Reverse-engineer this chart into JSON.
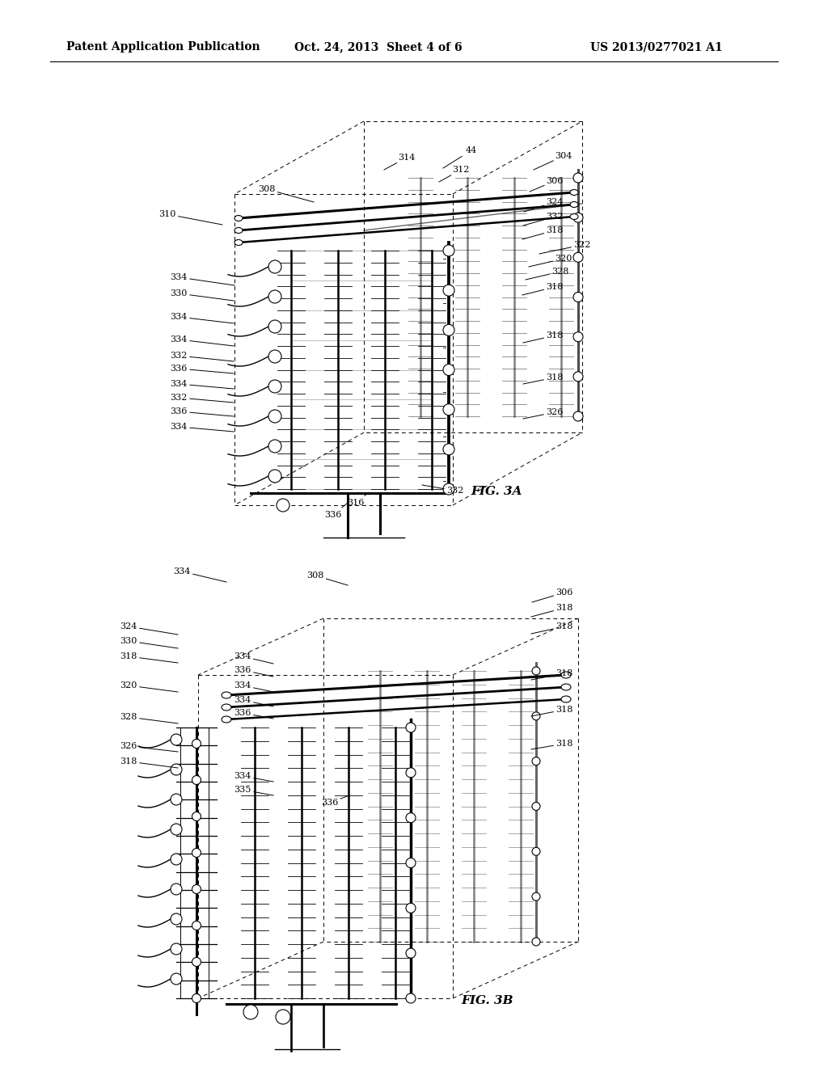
{
  "background": "#ffffff",
  "header_left": "Patent Application Publication",
  "header_center": "Oct. 24, 2013  Sheet 4 of 6",
  "header_right": "US 2013/0277021 A1",
  "fig3a_label": "FIG. 3A",
  "fig3b_label": "FIG. 3B",
  "fig3a_refs": [
    [
      "308",
      337,
      232
    ],
    [
      "314",
      503,
      197
    ],
    [
      "44",
      587,
      188
    ],
    [
      "304",
      695,
      196
    ],
    [
      "312",
      572,
      215
    ],
    [
      "306",
      688,
      226
    ],
    [
      "310",
      210,
      265
    ],
    [
      "324",
      688,
      252
    ],
    [
      "332",
      688,
      270
    ],
    [
      "318",
      688,
      289
    ],
    [
      "322",
      720,
      305
    ],
    [
      "320",
      700,
      322
    ],
    [
      "328",
      695,
      338
    ],
    [
      "334",
      225,
      342
    ],
    [
      "330",
      225,
      363
    ],
    [
      "334",
      225,
      390
    ],
    [
      "334",
      225,
      417
    ],
    [
      "332",
      225,
      438
    ],
    [
      "336",
      225,
      454
    ],
    [
      "334",
      225,
      473
    ],
    [
      "332",
      225,
      491
    ],
    [
      "336",
      225,
      508
    ],
    [
      "334",
      225,
      527
    ],
    [
      "318",
      688,
      355
    ],
    [
      "318",
      688,
      415
    ],
    [
      "318",
      688,
      467
    ],
    [
      "326",
      688,
      508
    ],
    [
      "332",
      565,
      605
    ],
    [
      "316",
      440,
      620
    ],
    [
      "336",
      415,
      635
    ]
  ],
  "fig3b_refs": [
    [
      "308",
      393,
      712
    ],
    [
      "334",
      227,
      706
    ],
    [
      "306",
      698,
      733
    ],
    [
      "318",
      698,
      753
    ],
    [
      "324",
      161,
      775
    ],
    [
      "330",
      161,
      795
    ],
    [
      "318",
      161,
      813
    ],
    [
      "334",
      302,
      813
    ],
    [
      "336",
      302,
      829
    ],
    [
      "320",
      161,
      848
    ],
    [
      "334",
      302,
      848
    ],
    [
      "334",
      302,
      866
    ],
    [
      "336",
      302,
      882
    ],
    [
      "328",
      161,
      886
    ],
    [
      "318",
      698,
      775
    ],
    [
      "318",
      698,
      833
    ],
    [
      "318",
      698,
      878
    ],
    [
      "326",
      161,
      923
    ],
    [
      "318",
      161,
      943
    ],
    [
      "334",
      302,
      960
    ],
    [
      "335",
      302,
      978
    ],
    [
      "336",
      410,
      993
    ]
  ]
}
